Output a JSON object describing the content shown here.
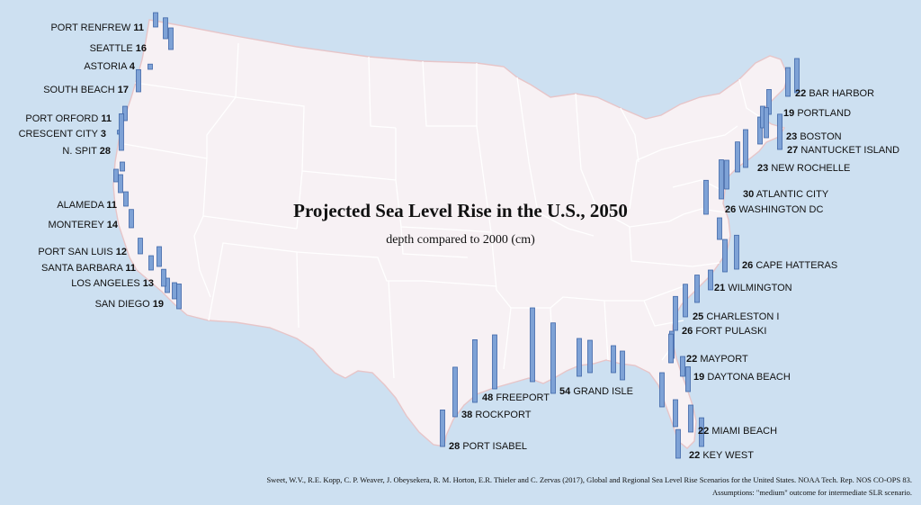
{
  "title": "Projected Sea Level Rise in the U.S., 2050",
  "subtitle": "depth compared to 2000 (cm)",
  "source": "Sweet, W.V., R.E. Kopp, C. P. Weaver, J. Obeysekera, R. M. Horton, E.R. Thieler and C. Zervas (2017), Global and Regional Sea Level Rise Scenarios for the United States. NOAA Tech. Rep. NOS CO-OPS 83.",
  "assumptions": "Assumptions: \"medium\" outcome for intermediate SLR scenario.",
  "colors": {
    "ocean": "#cde0f1",
    "land": "#f7f1f4",
    "state_border": "#ffffff",
    "coast": "#e7c5c8",
    "bar_fill": "#7ea2d6",
    "bar_stroke": "#3f67a8"
  },
  "chart_data": {
    "type": "bar",
    "unit": "cm",
    "stations": [
      {
        "name": "PORT RENFREW",
        "value": 11
      },
      {
        "name": "SEATTLE",
        "value": 16
      },
      {
        "name": "ASTORIA",
        "value": 4
      },
      {
        "name": "SOUTH BEACH",
        "value": 17
      },
      {
        "name": "PORT ORFORD",
        "value": 11
      },
      {
        "name": "CRESCENT CITY",
        "value": 3
      },
      {
        "name": "N. SPIT",
        "value": 28
      },
      {
        "name": "ALAMEDA",
        "value": 11
      },
      {
        "name": "MONTEREY",
        "value": 14
      },
      {
        "name": "PORT SAN LUIS",
        "value": 12
      },
      {
        "name": "SANTA BARBARA",
        "value": 11
      },
      {
        "name": "LOS ANGELES",
        "value": 13
      },
      {
        "name": "SAN DIEGO",
        "value": 19
      },
      {
        "name": "BAR HARBOR",
        "value": 22
      },
      {
        "name": "PORTLAND",
        "value": 19
      },
      {
        "name": "BOSTON",
        "value": 23
      },
      {
        "name": "NANTUCKET ISLAND",
        "value": 27
      },
      {
        "name": "NEW ROCHELLE",
        "value": 23
      },
      {
        "name": "ATLANTIC CITY",
        "value": 30
      },
      {
        "name": "WASHINGTON DC",
        "value": 26
      },
      {
        "name": "CAPE HATTERAS",
        "value": 26
      },
      {
        "name": "WILMINGTON",
        "value": 21
      },
      {
        "name": "CHARLESTON I",
        "value": 25
      },
      {
        "name": "FORT PULASKI",
        "value": 26
      },
      {
        "name": "MAYPORT",
        "value": 22
      },
      {
        "name": "DAYTONA BEACH",
        "value": 19
      },
      {
        "name": "MIAMI BEACH",
        "value": 22
      },
      {
        "name": "KEY WEST",
        "value": 22
      },
      {
        "name": "PORT ISABEL",
        "value": 28
      },
      {
        "name": "ROCKPORT",
        "value": 38
      },
      {
        "name": "FREEPORT",
        "value": 48
      },
      {
        "name": "GRAND ISLE",
        "value": 54
      }
    ]
  }
}
